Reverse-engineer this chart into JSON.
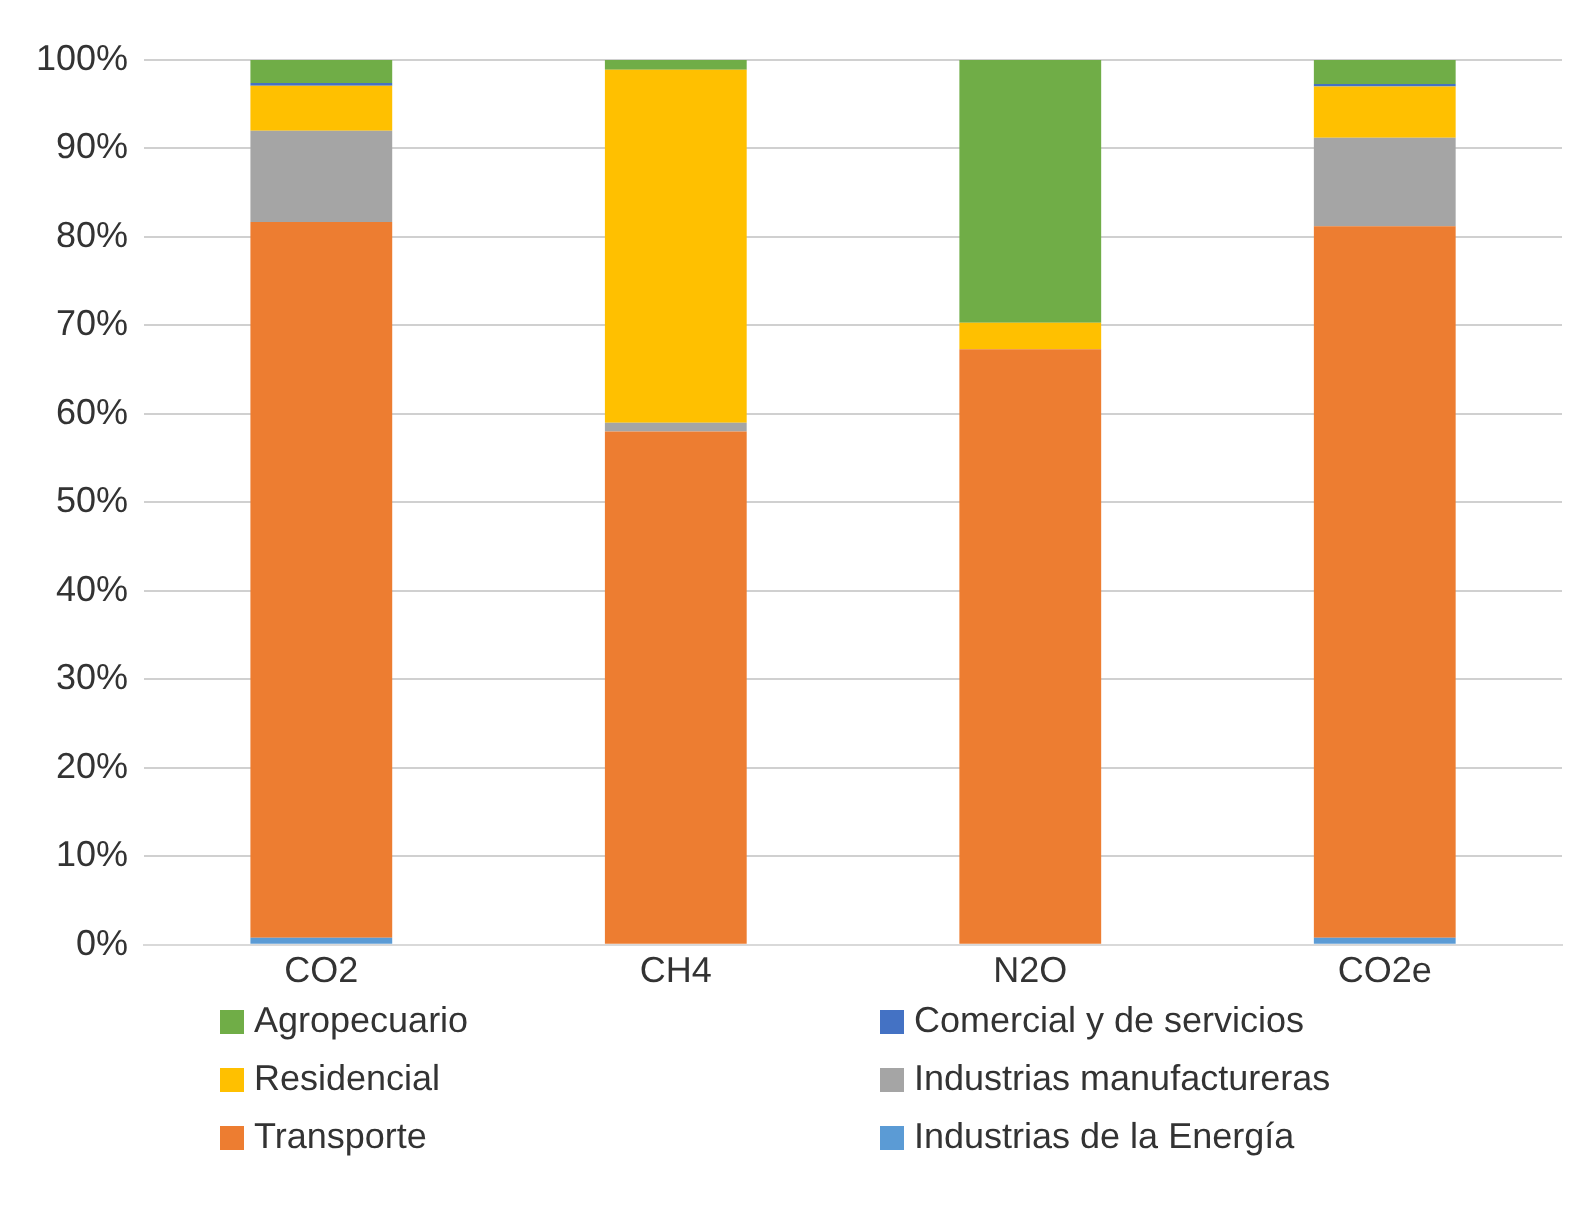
{
  "chart_data": {
    "type": "bar",
    "stacked": true,
    "categories": [
      "CO2",
      "CH4",
      "N2O",
      "CO2e"
    ],
    "series": [
      {
        "name": "Industrias de la Energía",
        "color": "#5b9bd5",
        "values": [
          0.8,
          0,
          0,
          0.8
        ]
      },
      {
        "name": "Transporte",
        "color": "#ed7d31",
        "values": [
          80.9,
          58,
          67.3,
          80.4
        ]
      },
      {
        "name": "Industrias manufactureras",
        "color": "#a5a5a5",
        "values": [
          10.3,
          1,
          0,
          10
        ]
      },
      {
        "name": "Residencial",
        "color": "#ffc000",
        "values": [
          5.1,
          39.9,
          3,
          5.8
        ]
      },
      {
        "name": "Comercial y de servicios",
        "color": "#4472c4",
        "values": [
          0.3,
          0,
          0,
          0.3
        ]
      },
      {
        "name": "Agropecuario",
        "color": "#70ad47",
        "values": [
          2.6,
          1.1,
          29.7,
          2.7
        ]
      }
    ],
    "ylim": [
      0,
      100
    ],
    "yticks": [
      {
        "value": 0,
        "label": "0%"
      },
      {
        "value": 10,
        "label": "10%"
      },
      {
        "value": 20,
        "label": "20%"
      },
      {
        "value": 30,
        "label": "30%"
      },
      {
        "value": 40,
        "label": "40%"
      },
      {
        "value": 50,
        "label": "50%"
      },
      {
        "value": 60,
        "label": "60%"
      },
      {
        "value": 70,
        "label": "70%"
      },
      {
        "value": 80,
        "label": "80%"
      },
      {
        "value": 90,
        "label": "90%"
      },
      {
        "value": 100,
        "label": "100%"
      }
    ],
    "grid": "y",
    "legend": "bottom"
  }
}
